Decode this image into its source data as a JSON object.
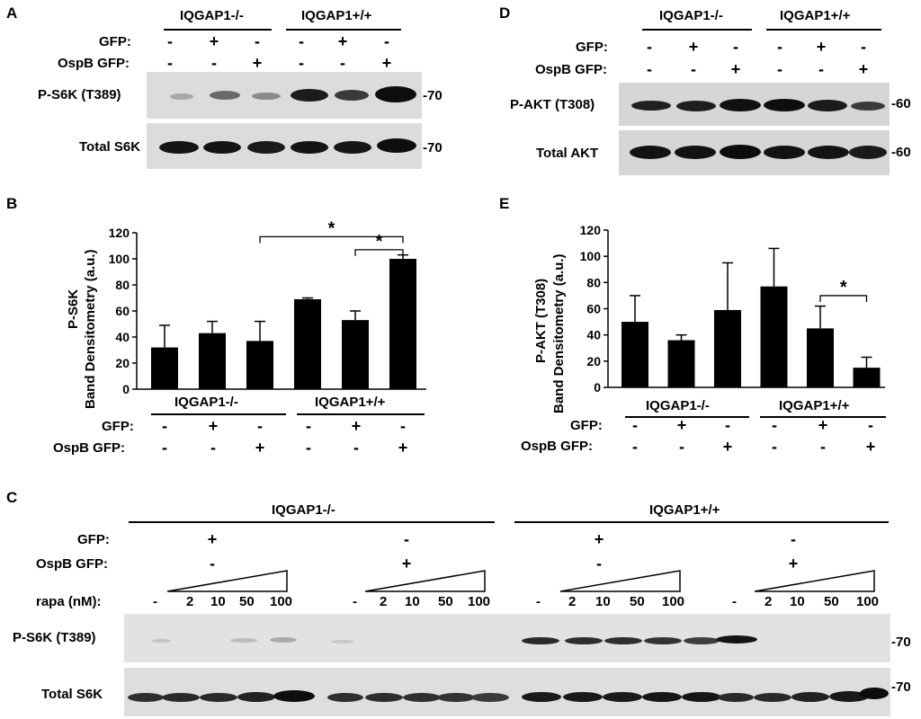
{
  "panels": {
    "a": {
      "letter": "A",
      "groups": [
        "IQGAP1-/-",
        "IQGAP1+/+"
      ],
      "row_labels": [
        "GFP:",
        "OspB GFP:"
      ],
      "gfp": [
        "-",
        "+",
        "-",
        "-",
        "+",
        "-"
      ],
      "ospb": [
        "-",
        "-",
        "+",
        "-",
        "-",
        "+"
      ],
      "blot_labels": [
        "P-S6K (T389)",
        "Total S6K"
      ],
      "mw": [
        "-70",
        "-70"
      ]
    },
    "b": {
      "letter": "B",
      "ylabel_line1": "P-S6K",
      "ylabel_line2": "Band Densitometry (a.u.)",
      "groups": [
        "IQGAP1-/-",
        "IQGAP1+/+"
      ],
      "row_labels": [
        "GFP:",
        "OspB GFP:"
      ],
      "gfp": [
        "-",
        "+",
        "-",
        "-",
        "+",
        "-"
      ],
      "ospb": [
        "-",
        "-",
        "+",
        "-",
        "-",
        "+"
      ],
      "sig": [
        "*",
        "*"
      ]
    },
    "c": {
      "letter": "C",
      "groups": [
        "IQGAP1-/-",
        "IQGAP1+/+"
      ],
      "row_labels": [
        "GFP:",
        "OspB GFP:",
        "rapa (nM):"
      ],
      "gfp": [
        "+",
        "-",
        "+",
        "-"
      ],
      "ospb": [
        "-",
        "+",
        "-",
        "+"
      ],
      "rapa": [
        "-",
        "2",
        "10",
        "50",
        "100",
        "-",
        "2",
        "10",
        "50",
        "100",
        "-",
        "2",
        "10",
        "50",
        "100",
        "-",
        "2",
        "10",
        "50",
        "100"
      ],
      "blot_labels": [
        "P-S6K (T389)",
        "Total S6K"
      ],
      "mw": [
        "-70",
        "-70"
      ]
    },
    "d": {
      "letter": "D",
      "groups": [
        "IQGAP1-/-",
        "IQGAP1+/+"
      ],
      "row_labels": [
        "GFP:",
        "OspB GFP:"
      ],
      "gfp": [
        "-",
        "+",
        "-",
        "-",
        "+",
        "-"
      ],
      "ospb": [
        "-",
        "-",
        "+",
        "-",
        "-",
        "+"
      ],
      "blot_labels": [
        "P-AKT (T308)",
        "Total AKT"
      ],
      "mw": [
        "-60",
        "-60"
      ]
    },
    "e": {
      "letter": "E",
      "ylabel_line1": "P-AKT (T308)",
      "ylabel_line2": "Band Densitometry (a.u.)",
      "groups": [
        "IQGAP1-/-",
        "IQGAP1+/+"
      ],
      "row_labels": [
        "GFP:",
        "OspB GFP:"
      ],
      "gfp": [
        "-",
        "+",
        "-",
        "-",
        "+",
        "-"
      ],
      "ospb": [
        "-",
        "-",
        "+",
        "-",
        "-",
        "+"
      ],
      "sig": [
        "*"
      ]
    }
  },
  "chart_data": [
    {
      "type": "bar",
      "panel": "B",
      "categories": [
        "1",
        "2",
        "3",
        "4",
        "5",
        "6"
      ],
      "values": [
        32,
        43,
        37,
        69,
        53,
        100
      ],
      "errors": [
        17,
        9,
        15,
        1,
        7,
        3
      ],
      "ylabel": "P-S6K Band Densitometry (a.u.)",
      "ylim": [
        0,
        120
      ],
      "yticks": [
        "0",
        "20",
        "40",
        "60",
        "80",
        "100",
        "120"
      ],
      "bar_color": "#000000"
    },
    {
      "type": "bar",
      "panel": "E",
      "categories": [
        "1",
        "2",
        "3",
        "4",
        "5",
        "6"
      ],
      "values": [
        50,
        36,
        59,
        77,
        45,
        15
      ],
      "errors": [
        20,
        4,
        36,
        29,
        17,
        8
      ],
      "ylabel": "P-AKT (T308) Band Densitometry (a.u.)",
      "ylim": [
        0,
        120
      ],
      "yticks": [
        "0",
        "20",
        "40",
        "60",
        "80",
        "100",
        "120"
      ],
      "bar_color": "#000000"
    }
  ]
}
